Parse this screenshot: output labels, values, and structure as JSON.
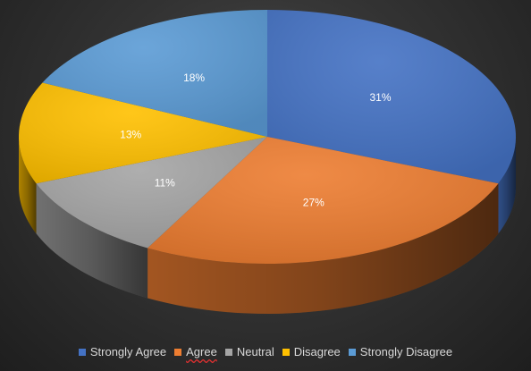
{
  "chart_data": {
    "type": "pie",
    "style": "3d",
    "categories": [
      "Strongly Agree",
      "Agree",
      "Neutral",
      "Disagree",
      "Strongly Disagree"
    ],
    "values": [
      31,
      27,
      11,
      13,
      18
    ],
    "value_labels": [
      "31%",
      "27%",
      "11%",
      "13%",
      "18%"
    ],
    "colors": [
      "#4472c4",
      "#ed7d31",
      "#a5a5a5",
      "#ffc000",
      "#5b9bd5"
    ],
    "legend_position": "bottom",
    "title": ""
  },
  "legend": {
    "items": [
      {
        "label": "Strongly Agree",
        "color": "#4472c4"
      },
      {
        "label": "Agree",
        "color": "#ed7d31"
      },
      {
        "label": "Neutral",
        "color": "#a5a5a5"
      },
      {
        "label": "Disagree",
        "color": "#ffc000"
      },
      {
        "label": "Strongly Disagree",
        "color": "#5b9bd5"
      }
    ]
  }
}
